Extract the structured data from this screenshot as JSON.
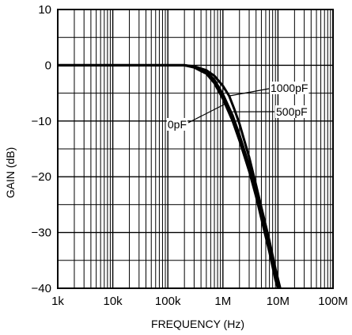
{
  "chart_data": {
    "type": "line",
    "title": "",
    "xlabel": "FREQUENCY (Hz)",
    "ylabel": "GAIN (dB)",
    "x_scale": "log",
    "x_unit": "Hz",
    "xlim": [
      1000,
      100000000
    ],
    "ylim": [
      -40,
      10
    ],
    "grid": true,
    "x_ticks": [
      {
        "value": 1000,
        "label": "1k"
      },
      {
        "value": 10000,
        "label": "10k"
      },
      {
        "value": 100000,
        "label": "100k"
      },
      {
        "value": 1000000,
        "label": "1M"
      },
      {
        "value": 10000000,
        "label": "10M"
      },
      {
        "value": 100000000,
        "label": "100M"
      }
    ],
    "y_ticks": [
      {
        "value": 10,
        "label": "10"
      },
      {
        "value": 0,
        "label": "0"
      },
      {
        "value": -10,
        "label": "−10"
      },
      {
        "value": -20,
        "label": "−20"
      },
      {
        "value": -30,
        "label": "−30"
      },
      {
        "value": -40,
        "label": "−40"
      }
    ],
    "series": [
      {
        "name": "0pF",
        "points": [
          [
            1000,
            0
          ],
          [
            100000,
            0
          ],
          [
            200000,
            0
          ],
          [
            300000,
            -0.4
          ],
          [
            500000,
            -1.5
          ],
          [
            700000,
            -3.2
          ],
          [
            1000000,
            -6
          ],
          [
            1500000,
            -10
          ],
          [
            2000000,
            -13.5
          ],
          [
            3000000,
            -19
          ],
          [
            4000000,
            -23.5
          ],
          [
            5000000,
            -27.5
          ],
          [
            7000000,
            -33.5
          ],
          [
            9000000,
            -38.5
          ],
          [
            10000000,
            -40
          ]
        ]
      },
      {
        "name": "500pF",
        "points": [
          [
            1000,
            0
          ],
          [
            100000,
            0
          ],
          [
            200000,
            0
          ],
          [
            300000,
            -0.3
          ],
          [
            500000,
            -1.2
          ],
          [
            700000,
            -2.6
          ],
          [
            1000000,
            -5.2
          ],
          [
            1500000,
            -9
          ],
          [
            2000000,
            -12.5
          ],
          [
            3000000,
            -18
          ],
          [
            4000000,
            -22.5
          ],
          [
            5000000,
            -26.5
          ],
          [
            7000000,
            -32.5
          ],
          [
            9000000,
            -37.5
          ],
          [
            10500000,
            -40
          ]
        ]
      },
      {
        "name": "1000pF",
        "points": [
          [
            1000,
            0
          ],
          [
            100000,
            0
          ],
          [
            200000,
            0
          ],
          [
            300000,
            -0.2
          ],
          [
            500000,
            -0.9
          ],
          [
            700000,
            -1.9
          ],
          [
            1000000,
            -3.7
          ],
          [
            1300000,
            -5.5
          ],
          [
            1600000,
            -7.8
          ],
          [
            2000000,
            -10.5
          ],
          [
            3000000,
            -16.5
          ],
          [
            4000000,
            -21.5
          ],
          [
            5000000,
            -25.5
          ],
          [
            7000000,
            -31.5
          ],
          [
            9000000,
            -36.5
          ],
          [
            11000000,
            -40
          ]
        ]
      }
    ],
    "annotations": [
      {
        "text": "1000pF",
        "series": "1000pF"
      },
      {
        "text": "500pF",
        "series": "500pF"
      },
      {
        "text": "0pF",
        "series": "0pF"
      }
    ]
  }
}
